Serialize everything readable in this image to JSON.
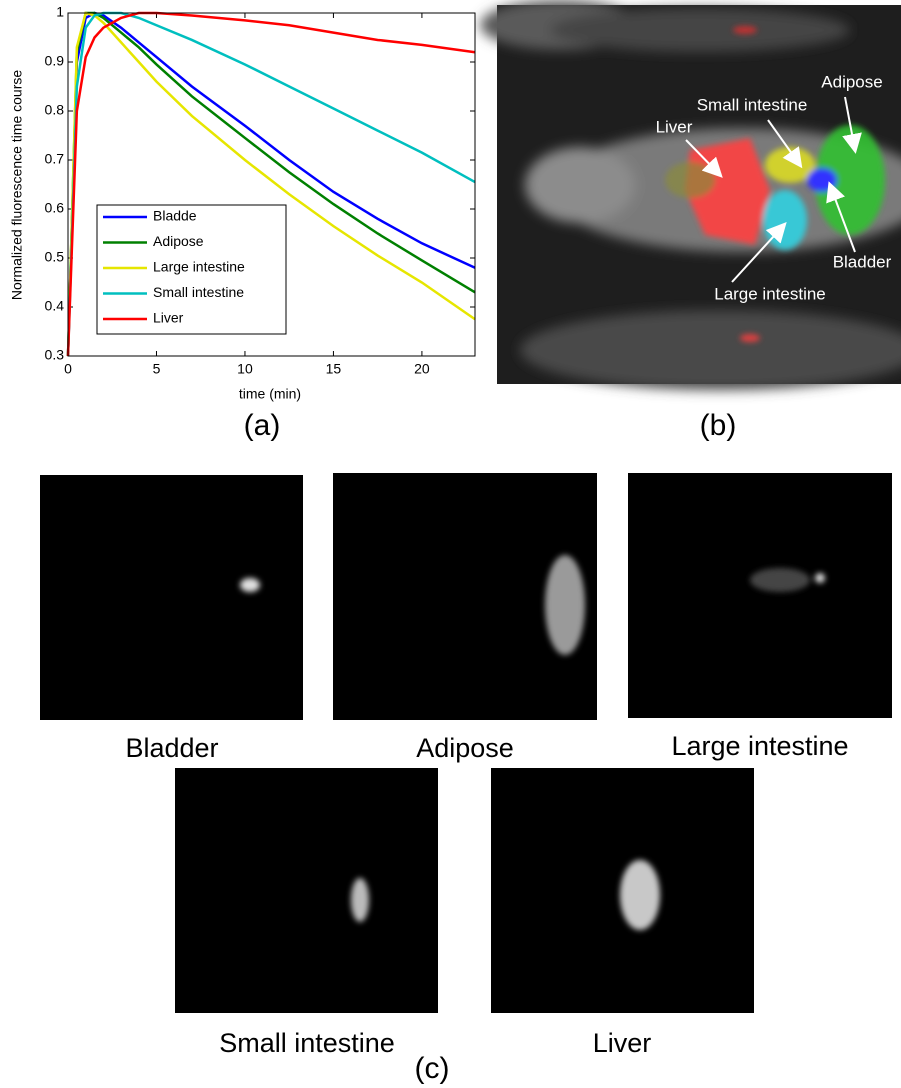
{
  "chart_data": {
    "type": "line",
    "xlabel": "time (min)",
    "ylabel": "Normalized fluorescence time course",
    "x": [
      0,
      0.5,
      1,
      1.5,
      2,
      3,
      4,
      5,
      7,
      10,
      12.5,
      15,
      17.5,
      20,
      23
    ],
    "series": [
      {
        "name": "Bladde",
        "color": "#0000ff",
        "values": [
          0.3,
          0.9,
          0.99,
          1.0,
          0.995,
          0.97,
          0.94,
          0.91,
          0.85,
          0.77,
          0.7,
          0.635,
          0.58,
          0.53,
          0.48
        ]
      },
      {
        "name": "Adipose",
        "color": "#008000",
        "values": [
          0.3,
          0.92,
          1.0,
          1.0,
          0.99,
          0.96,
          0.93,
          0.895,
          0.83,
          0.745,
          0.675,
          0.61,
          0.55,
          0.495,
          0.43
        ]
      },
      {
        "name": "Large intestine",
        "color": "#e6e600",
        "values": [
          0.3,
          0.93,
          1.0,
          0.995,
          0.98,
          0.94,
          0.9,
          0.86,
          0.79,
          0.7,
          0.63,
          0.565,
          0.505,
          0.45,
          0.375
        ]
      },
      {
        "name": "Small intestine",
        "color": "#00bfbf",
        "values": [
          0.3,
          0.85,
          0.97,
          0.995,
          1.0,
          1.0,
          0.99,
          0.975,
          0.945,
          0.895,
          0.85,
          0.805,
          0.76,
          0.715,
          0.655
        ]
      },
      {
        "name": "Liver",
        "color": "#ff0000",
        "values": [
          0.3,
          0.8,
          0.91,
          0.95,
          0.97,
          0.99,
          1.0,
          1.0,
          0.995,
          0.985,
          0.975,
          0.96,
          0.945,
          0.935,
          0.92
        ]
      }
    ],
    "xlim": [
      0,
      23
    ],
    "xticks": [
      0,
      5,
      10,
      15,
      20
    ],
    "ylim": [
      0.3,
      1
    ],
    "yticks": [
      0.3,
      0.4,
      0.5,
      0.6,
      0.7,
      0.8,
      0.9,
      1
    ],
    "grid": false,
    "legend": "lower left"
  },
  "panel_labels": [
    "(a)",
    "(b)",
    "(c)"
  ],
  "overlay_labels": [
    "Adipose",
    "Small intestine",
    "Liver",
    "Bladder",
    "Large intestine"
  ],
  "image_captions": [
    "Bladder",
    "Adipose",
    "Large intestine",
    "Small intestine",
    "Liver"
  ]
}
